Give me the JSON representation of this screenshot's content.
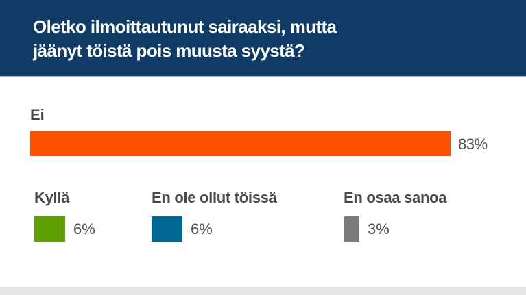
{
  "header": {
    "title_line1": "Oletko ilmoittautunut sairaaksi, mutta",
    "title_line2": "jäänyt töistä pois muusta syystä?",
    "background": "#0f3b66"
  },
  "main": {
    "label": "Ei",
    "value_label": "83%",
    "color": "#fb5100"
  },
  "legend": [
    {
      "label": "Kyllä",
      "value_label": "6%",
      "color": "#5f9f00"
    },
    {
      "label": "En ole ollut töissä",
      "value_label": "6%",
      "color": "#006897"
    },
    {
      "label": "En osaa sanoa",
      "value_label": "3%",
      "color": "#7b7b7b"
    }
  ],
  "chart_data": {
    "type": "bar",
    "title": "Oletko ilmoittautunut sairaaksi, mutta jäänyt töistä pois muusta syystä?",
    "categories": [
      "Ei",
      "Kyllä",
      "En ole ollut töissä",
      "En osaa sanoa"
    ],
    "values": [
      83,
      6,
      6,
      3
    ],
    "unit": "%",
    "colors": [
      "#fb5100",
      "#5f9f00",
      "#006897",
      "#7b7b7b"
    ],
    "xlabel": "",
    "ylabel": "",
    "grid": false
  }
}
